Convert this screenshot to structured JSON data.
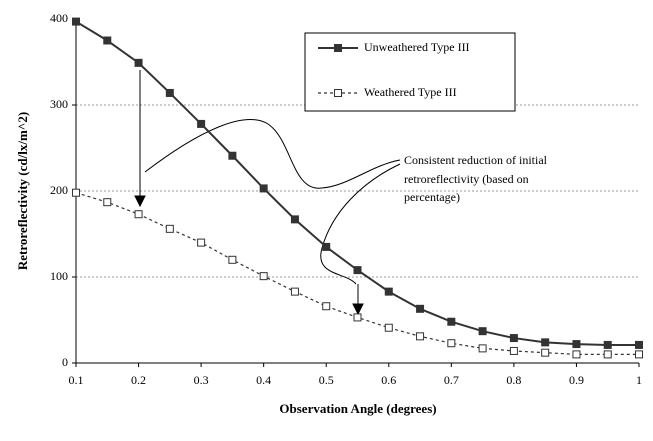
{
  "chart_data": {
    "type": "line",
    "x": [
      0.1,
      0.15,
      0.2,
      0.25,
      0.3,
      0.35,
      0.4,
      0.45,
      0.5,
      0.55,
      0.6,
      0.65,
      0.7,
      0.75,
      0.8,
      0.85,
      0.9,
      0.95,
      1
    ],
    "series": [
      {
        "name": "Unweathered Type III",
        "color": "#333333",
        "values": [
          397,
          375,
          349,
          314,
          278,
          241,
          203,
          167,
          135,
          108,
          83,
          63,
          48,
          37,
          29,
          24,
          22,
          21,
          21
        ]
      },
      {
        "name": "Weathered Type III",
        "color": "#333333",
        "values": [
          198,
          187,
          173,
          156,
          140,
          120,
          101,
          83,
          66,
          53,
          41,
          31,
          23,
          17,
          14,
          12,
          10,
          10,
          10
        ]
      }
    ],
    "xlabel": "Observation Angle (degrees)",
    "ylabel": "Retroreflectivity (cd/lx/m^2)",
    "xlim": [
      0.1,
      1
    ],
    "ylim": [
      0,
      400
    ],
    "xticks": [
      0.1,
      0.2,
      0.3,
      0.4,
      0.5,
      0.6,
      0.7,
      0.8,
      0.9,
      1
    ],
    "yticks": [
      0,
      100,
      200,
      300,
      400
    ],
    "grid": true,
    "annotation": [
      "Consistent reduction of initial",
      "retroreflectivity (based on",
      "percentage)"
    ]
  }
}
